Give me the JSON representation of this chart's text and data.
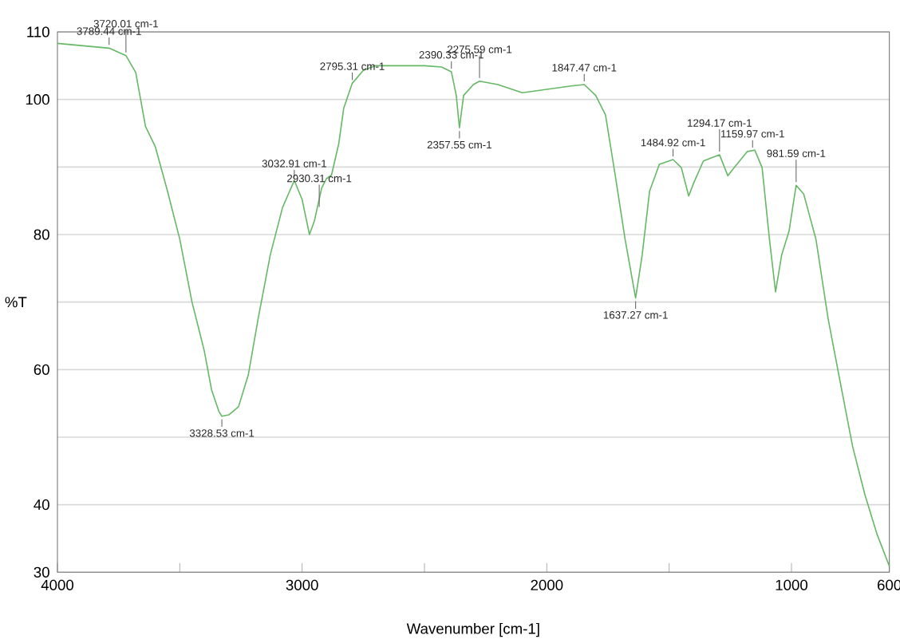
{
  "chart_data": {
    "type": "line",
    "xlabel": "Wavenumber [cm-1]",
    "ylabel": "%T",
    "xlim": [
      4000,
      600
    ],
    "ylim": [
      30,
      110
    ],
    "xticks": [
      4000,
      {
        "value": 3500,
        "label": null
      },
      3000,
      {
        "value": 2500,
        "label": null
      },
      2000,
      {
        "value": 1500,
        "label": null
      },
      1000,
      600
    ],
    "yticks": [
      30,
      40,
      {
        "value": 50,
        "label": null
      },
      60,
      {
        "value": 70,
        "label": null
      },
      80,
      {
        "value": 90,
        "label": null
      },
      100,
      110
    ],
    "grid": "y",
    "series": [
      {
        "color": "#66b866",
        "x": [
          4000,
          3789,
          3720,
          3680,
          3640,
          3600,
          3550,
          3500,
          3450,
          3400,
          3370,
          3340,
          3328,
          3300,
          3260,
          3220,
          3180,
          3130,
          3080,
          3032,
          3000,
          2970,
          2950,
          2920,
          2900,
          2880,
          2850,
          2830,
          2795,
          2750,
          2700,
          2600,
          2500,
          2430,
          2390,
          2370,
          2357,
          2340,
          2300,
          2275,
          2200,
          2100,
          2000,
          1900,
          1847,
          1800,
          1760,
          1720,
          1680,
          1637,
          1610,
          1580,
          1540,
          1484,
          1450,
          1420,
          1400,
          1360,
          1294,
          1260,
          1230,
          1180,
          1150,
          1120,
          1090,
          1065,
          1040,
          1010,
          981,
          950,
          900,
          850,
          800,
          750,
          700,
          650,
          600
        ],
        "values": [
          108.3,
          107.6,
          106.5,
          104,
          96,
          93,
          86.4,
          79.3,
          70,
          62.8,
          57,
          53.8,
          53.1,
          53.3,
          54.5,
          59.2,
          67.5,
          77,
          84,
          88,
          85.2,
          80,
          82,
          86.9,
          88.3,
          88.8,
          93.5,
          98.7,
          102.4,
          104.3,
          105,
          105,
          105,
          104.8,
          104.1,
          100.6,
          95.8,
          100.6,
          102.2,
          102.7,
          102.2,
          101,
          101.5,
          102,
          102.2,
          100.6,
          97.7,
          88.7,
          79.3,
          70.6,
          77,
          86.4,
          90.4,
          91.1,
          89.9,
          85.7,
          87.6,
          90.9,
          91.8,
          88.7,
          90.1,
          92.3,
          92.5,
          89.9,
          79.3,
          71.5,
          77,
          80.5,
          87.3,
          86,
          79.3,
          67.5,
          58,
          48.6,
          41.5,
          35.6,
          30.9
        ]
      }
    ],
    "annotations": [
      {
        "text": "3789.44 cm-1",
        "x": 3789,
        "y": 107.6
      },
      {
        "text": "3720.01 cm-1",
        "x": 3720,
        "y": 106.5
      },
      {
        "text": "3328.53 cm-1",
        "x": 3328,
        "y": 53.1
      },
      {
        "text": "3032.91 cm-1",
        "x": 3032,
        "y": 88
      },
      {
        "text": "2930.31 cm-1",
        "x": 2930,
        "y": 83.6
      },
      {
        "text": "2795.31 cm-1",
        "x": 2795,
        "y": 102.4
      },
      {
        "text": "2390.33 cm-1",
        "x": 2390,
        "y": 104.1
      },
      {
        "text": "2357.55 cm-1",
        "x": 2357,
        "y": 95.8
      },
      {
        "text": "2275.59 cm-1",
        "x": 2275,
        "y": 102.7
      },
      {
        "text": "1847.47 cm-1",
        "x": 1847,
        "y": 102.2
      },
      {
        "text": "1637.27 cm-1",
        "x": 1637,
        "y": 70.6
      },
      {
        "text": "1484.92 cm-1",
        "x": 1484,
        "y": 91.1
      },
      {
        "text": "1294.17 cm-1",
        "x": 1294,
        "y": 91.8
      },
      {
        "text": "1159.97 cm-1",
        "x": 1159,
        "y": 92.4
      },
      {
        "text": "981.59 cm-1",
        "x": 981,
        "y": 87.3
      }
    ]
  }
}
